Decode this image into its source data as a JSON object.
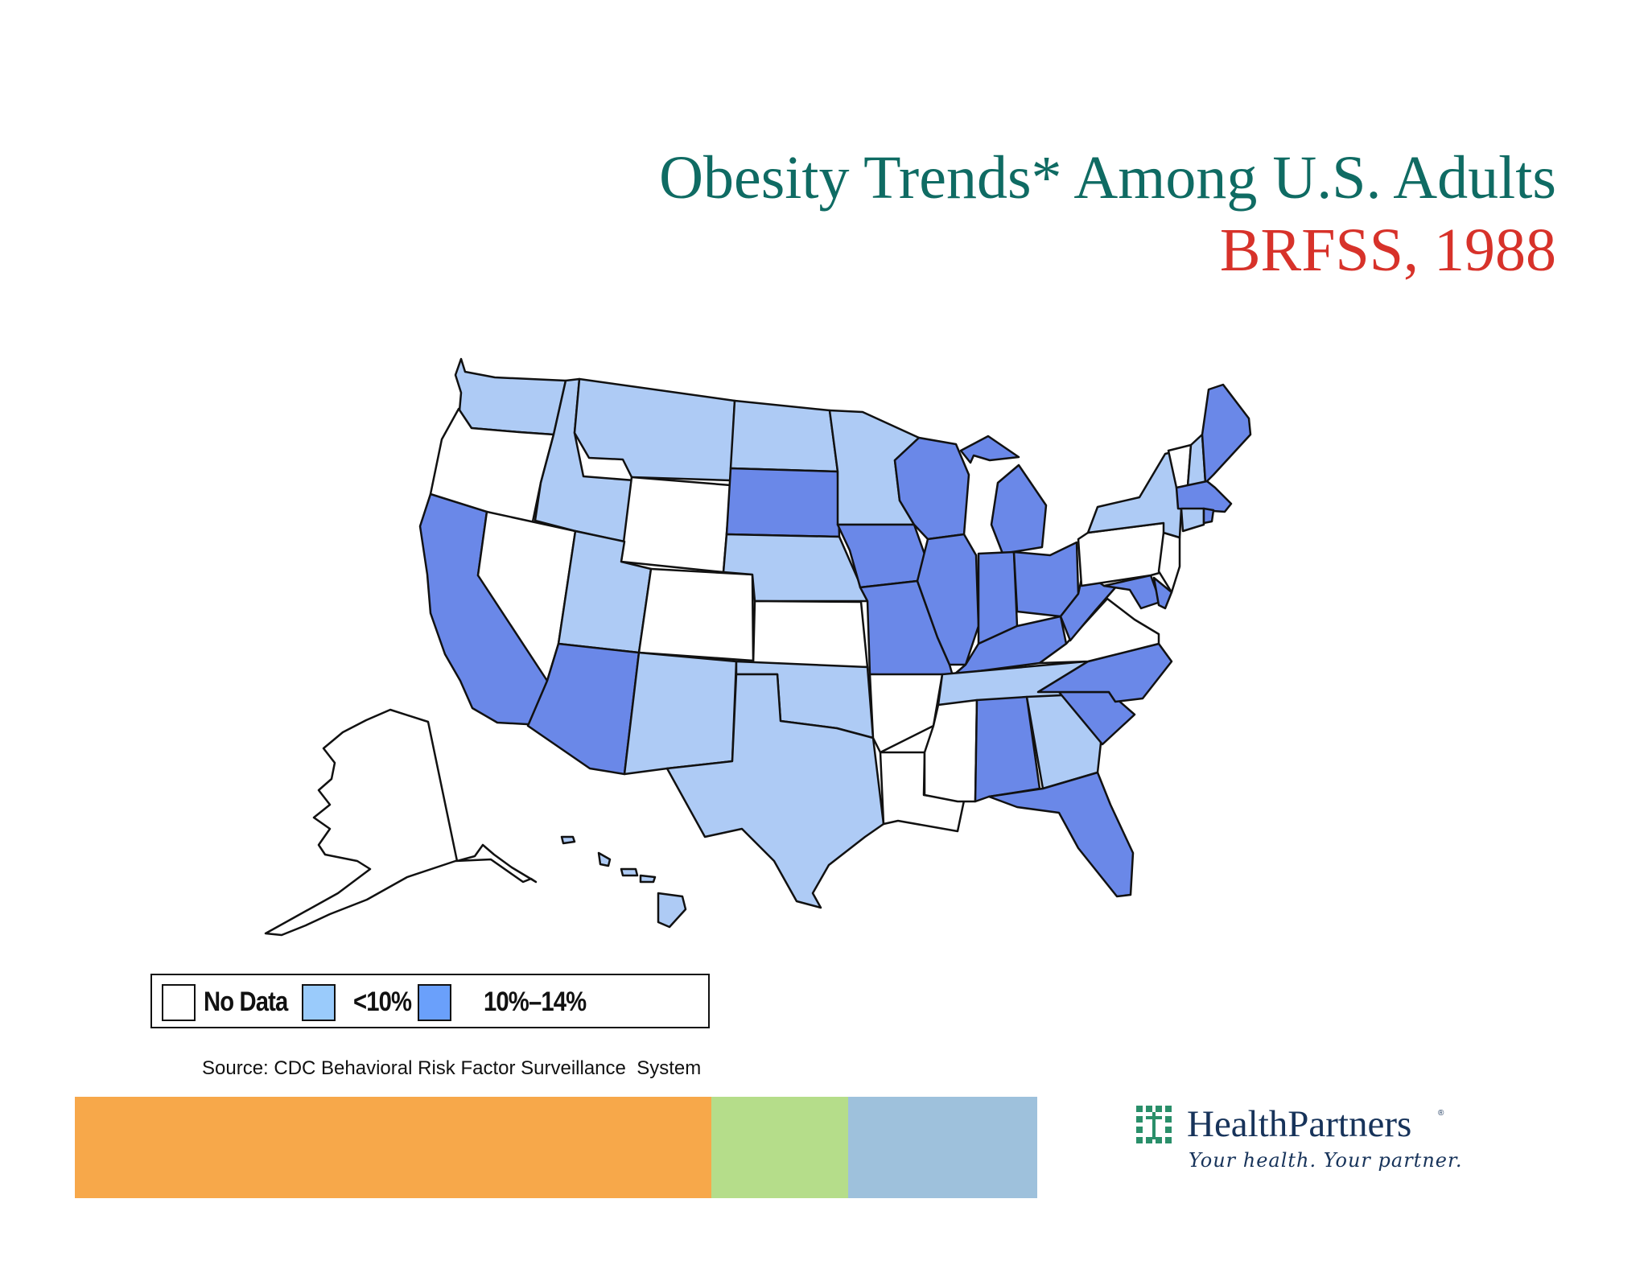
{
  "title": {
    "line1": "Obesity Trends* Among U.S. Adults",
    "line2": "BRFSS, 1988"
  },
  "colors": {
    "no_data": "#ffffff",
    "under_10": "#aecbf5",
    "range_10_14": "#6a88e8",
    "legend_under_10": "#9acbfb",
    "legend_10_14": "#6aa0fb",
    "title_teal": "#0f6b63",
    "title_red": "#d7322a",
    "band_orange": "#f7a84a",
    "band_green": "#b5dd8a",
    "band_blue": "#9ec1dc"
  },
  "legend": {
    "items": [
      {
        "label": "No Data",
        "category": "no_data"
      },
      {
        "label": "<10%",
        "category": "under_10"
      },
      {
        "label": "10%–14%",
        "category": "range_10_14"
      }
    ]
  },
  "states": {
    "WA": "under_10",
    "OR": "no_data",
    "CA": "range_10_14",
    "NV": "no_data",
    "ID": "under_10",
    "MT": "under_10",
    "WY": "no_data",
    "UT": "under_10",
    "CO": "no_data",
    "AZ": "range_10_14",
    "NM": "under_10",
    "ND": "under_10",
    "SD": "range_10_14",
    "NE": "under_10",
    "KS": "no_data",
    "OK": "under_10",
    "TX": "under_10",
    "MN": "under_10",
    "IA": "range_10_14",
    "MO": "range_10_14",
    "AR": "no_data",
    "LA": "no_data",
    "WI": "range_10_14",
    "IL": "range_10_14",
    "MI": "range_10_14",
    "IN": "range_10_14",
    "OH": "range_10_14",
    "KY": "range_10_14",
    "TN": "under_10",
    "MS": "no_data",
    "AL": "range_10_14",
    "GA": "under_10",
    "FL": "range_10_14",
    "SC": "range_10_14",
    "NC": "range_10_14",
    "VA": "no_data",
    "WV": "range_10_14",
    "MD": "range_10_14",
    "DE": "range_10_14",
    "PA": "no_data",
    "NJ": "no_data",
    "NY": "under_10",
    "CT": "under_10",
    "RI": "range_10_14",
    "MA": "range_10_14",
    "VT": "no_data",
    "NH": "under_10",
    "ME": "range_10_14",
    "AK": "no_data",
    "HI": "under_10"
  },
  "source": "Source: CDC Behavioral Risk Factor Surveillance  System",
  "logo": {
    "name": "HealthPartners",
    "registered": "®",
    "tagline": "Your health. Your partner."
  }
}
